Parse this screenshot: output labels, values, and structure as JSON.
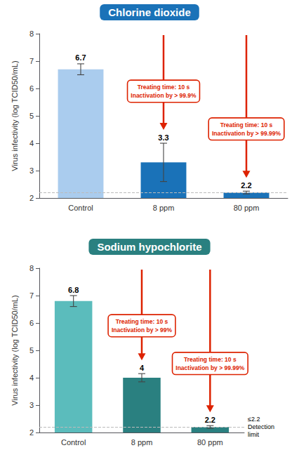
{
  "chart_data": [
    {
      "type": "bar",
      "title": "Chlorine dioxide",
      "ylabel": "Virus infectivity (log TCID50/mL)",
      "categories": [
        "Control",
        "8 ppm",
        "80 ppm"
      ],
      "values": [
        6.7,
        3.3,
        2.2
      ],
      "errors": [
        0.2,
        0.7,
        0.05
      ],
      "colors": [
        "#AACCEE",
        "#1A72B8",
        "#1A72B8"
      ],
      "ylim": [
        2,
        8
      ],
      "yticks": [
        2,
        3,
        4,
        5,
        6,
        7,
        8
      ],
      "grid": false,
      "data_labels": true,
      "detection_line": 2.2,
      "annotations": [
        {
          "text": "Treating time: 10 s\nInactivation by > 99.9%",
          "category": "8 ppm"
        },
        {
          "text": "Treating time: 10 s\nInactivation by > 99.99%",
          "category": "80 ppm"
        }
      ]
    },
    {
      "type": "bar",
      "title": "Sodium hypochlorite",
      "ylabel": "Virus infectivity (log TCID50/mL)",
      "categories": [
        "Control",
        "8 ppm",
        "80 ppm"
      ],
      "values": [
        6.8,
        4.0,
        2.2
      ],
      "errors": [
        0.2,
        0.15,
        0.05
      ],
      "colors": [
        "#5BBCBC",
        "#2A8080",
        "#2A8080"
      ],
      "ylim": [
        2,
        8
      ],
      "yticks": [
        2,
        3,
        4,
        5,
        6,
        7,
        8
      ],
      "grid": false,
      "data_labels": true,
      "detection_line": 2.2,
      "detection_label": "≤2.2\nDetection\nlimit",
      "annotations": [
        {
          "text": "Treating time: 10 s\nInactivation by > 99%",
          "category": "8 ppm"
        },
        {
          "text": "Treating time: 10 s\nInactivation by > 99.99%",
          "category": "80 ppm"
        }
      ]
    }
  ]
}
